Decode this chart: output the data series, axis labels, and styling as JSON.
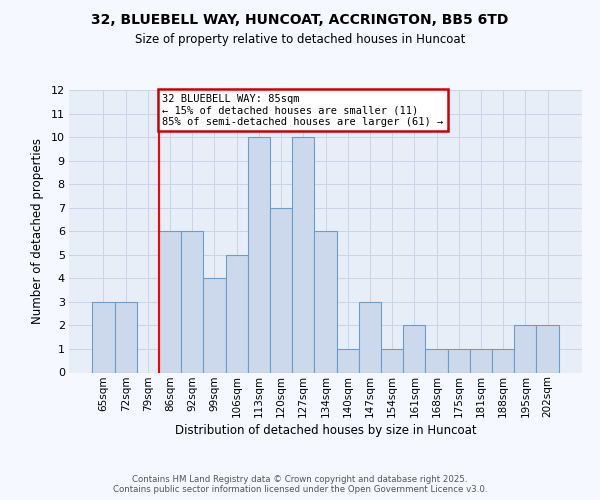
{
  "title_line1": "32, BLUEBELL WAY, HUNCOAT, ACCRINGTON, BB5 6TD",
  "title_line2": "Size of property relative to detached houses in Huncoat",
  "xlabel": "Distribution of detached houses by size in Huncoat",
  "ylabel": "Number of detached properties",
  "categories": [
    "65sqm",
    "72sqm",
    "79sqm",
    "86sqm",
    "92sqm",
    "99sqm",
    "106sqm",
    "113sqm",
    "120sqm",
    "127sqm",
    "134sqm",
    "140sqm",
    "147sqm",
    "154sqm",
    "161sqm",
    "168sqm",
    "175sqm",
    "181sqm",
    "188sqm",
    "195sqm",
    "202sqm"
  ],
  "values": [
    3,
    3,
    0,
    6,
    6,
    4,
    5,
    10,
    7,
    10,
    6,
    1,
    3,
    1,
    2,
    1,
    1,
    1,
    1,
    2,
    2
  ],
  "bar_color": "#ccd9ed",
  "bar_edge_color": "#6a9dc8",
  "ylim": [
    0,
    12
  ],
  "yticks": [
    0,
    1,
    2,
    3,
    4,
    5,
    6,
    7,
    8,
    9,
    10,
    11,
    12
  ],
  "red_line_index": 3,
  "annotation_text": "32 BLUEBELL WAY: 85sqm\n← 15% of detached houses are smaller (11)\n85% of semi-detached houses are larger (61) →",
  "annotation_box_facecolor": "#ffffff",
  "annotation_box_edgecolor": "#cc0000",
  "footnote_line1": "Contains HM Land Registry data © Crown copyright and database right 2025.",
  "footnote_line2": "Contains public sector information licensed under the Open Government Licence v3.0.",
  "grid_color": "#c8d4e8",
  "plot_bg_color": "#e8eef8",
  "fig_bg_color": "#f5f8ff"
}
